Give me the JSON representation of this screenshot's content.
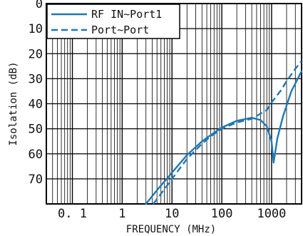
{
  "chart_data": {
    "type": "line",
    "title": "",
    "xlabel": "FREQUENCY (MHz)",
    "ylabel": "Isolation (dB)",
    "x_scale": "log",
    "xlim": [
      0.03,
      4000
    ],
    "ylim": [
      0,
      80
    ],
    "y_inverted": true,
    "x_ticks": [
      0.1,
      1,
      10,
      100,
      1000
    ],
    "x_tick_labels": [
      "0. 1",
      "1",
      "10",
      "100",
      "1000"
    ],
    "y_ticks": [
      0,
      10,
      20,
      30,
      40,
      50,
      60,
      70
    ],
    "y_tick_labels": [
      "0",
      "10",
      "20",
      "30",
      "40",
      "50",
      "60",
      "70"
    ],
    "grid": true,
    "legend_position": "top-left",
    "series": [
      {
        "name": "RF IN∼Port1",
        "style": "solid",
        "color": "#1f78b4",
        "x": [
          3,
          5,
          10,
          20,
          40,
          60,
          100,
          200,
          400,
          600,
          800,
          1000,
          1100,
          1300,
          1700,
          2500,
          4000
        ],
        "y": [
          80,
          74.5,
          67.5,
          60.5,
          55,
          52.5,
          49.5,
          46.8,
          45.6,
          46.5,
          49,
          55,
          63.5,
          54,
          45,
          35,
          27
        ]
      },
      {
        "name": "Port∼Port",
        "style": "dashed",
        "color": "#1f78b4",
        "x": [
          4.2,
          6,
          10,
          20,
          40,
          60,
          100,
          200,
          400,
          800,
          1000,
          1500,
          2000,
          3000,
          4000
        ],
        "y": [
          80,
          76,
          70,
          62,
          56,
          53,
          50,
          47.5,
          46,
          42.5,
          39.5,
          35,
          31,
          26,
          23
        ]
      }
    ]
  }
}
